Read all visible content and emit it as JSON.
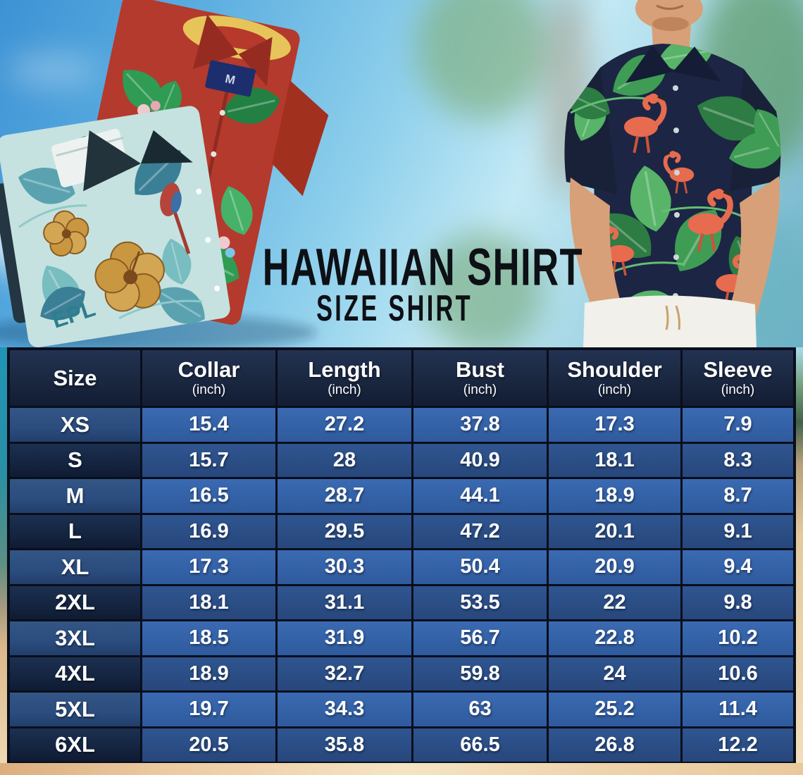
{
  "title": "HAWAIIAN SHIRT",
  "subtitle": "SIZE SHIRT",
  "photos": {
    "left_alt": "two folded hawaiian shirts (red tropical and teal floral)",
    "right_alt": "man wearing navy flamingo hawaiian shirt with white pants",
    "teal_shirt_text": "EPL",
    "red_shirt_tag": "M"
  },
  "colors": {
    "header_bg": "#1a2740",
    "row_blue_light": "#3a6ab2",
    "row_blue_dark": "#2f5590",
    "size_cell_blue": "#2b4c7e",
    "size_cell_navy": "#142440",
    "table_border": "#090e1c",
    "title_color": "#0d1015",
    "sand": "#eccf9f"
  },
  "chart_data": {
    "type": "table",
    "columns": [
      {
        "label": "Size",
        "unit": ""
      },
      {
        "label": "Collar",
        "unit": "(inch)"
      },
      {
        "label": "Length",
        "unit": "(inch)"
      },
      {
        "label": "Bust",
        "unit": "(inch)"
      },
      {
        "label": "Shoulder",
        "unit": "(inch)"
      },
      {
        "label": "Sleeve",
        "unit": "(inch)"
      }
    ],
    "rows": [
      {
        "size": "XS",
        "values": [
          "15.4",
          "27.2",
          "37.8",
          "17.3",
          "7.9"
        ]
      },
      {
        "size": "S",
        "values": [
          "15.7",
          "28",
          "40.9",
          "18.1",
          "8.3"
        ]
      },
      {
        "size": "M",
        "values": [
          "16.5",
          "28.7",
          "44.1",
          "18.9",
          "8.7"
        ]
      },
      {
        "size": "L",
        "values": [
          "16.9",
          "29.5",
          "47.2",
          "20.1",
          "9.1"
        ]
      },
      {
        "size": "XL",
        "values": [
          "17.3",
          "30.3",
          "50.4",
          "20.9",
          "9.4"
        ]
      },
      {
        "size": "2XL",
        "values": [
          "18.1",
          "31.1",
          "53.5",
          "22",
          "9.8"
        ]
      },
      {
        "size": "3XL",
        "values": [
          "18.5",
          "31.9",
          "56.7",
          "22.8",
          "10.2"
        ]
      },
      {
        "size": "4XL",
        "values": [
          "18.9",
          "32.7",
          "59.8",
          "24",
          "10.6"
        ]
      },
      {
        "size": "5XL",
        "values": [
          "19.7",
          "34.3",
          "63",
          "25.2",
          "11.4"
        ]
      },
      {
        "size": "6XL",
        "values": [
          "20.5",
          "35.8",
          "66.5",
          "26.8",
          "12.2"
        ]
      }
    ]
  }
}
